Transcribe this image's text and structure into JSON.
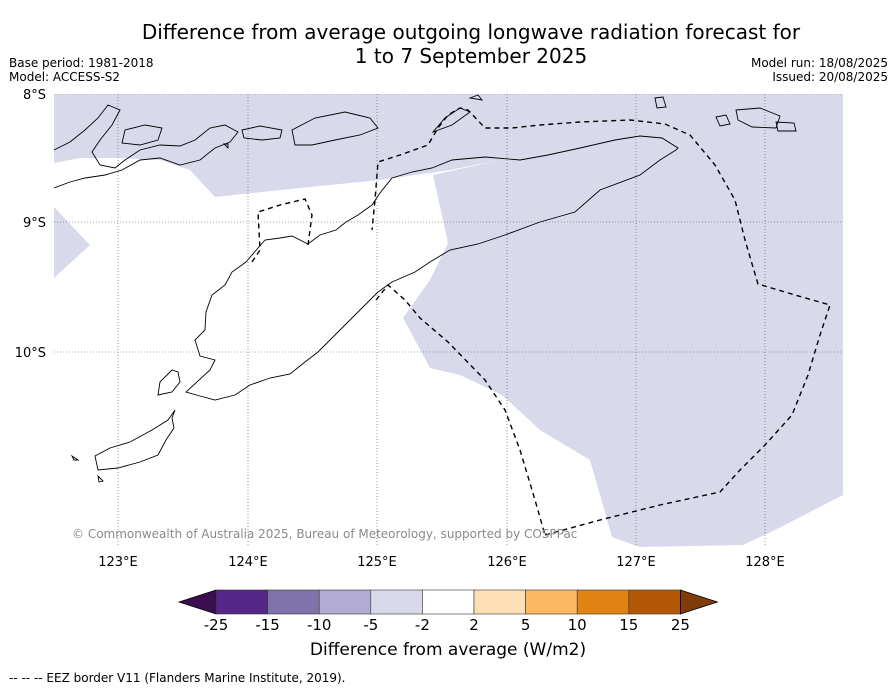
{
  "title_line1": "Difference from average outgoing longwave radiation forecast for",
  "title_line2": "1 to 7 September 2025",
  "base_period": "Base period: 1981-2018",
  "model": "Model: ACCESS-S2",
  "model_run": "Model run: 18/08/2025",
  "issued": "Issued: 20/08/2025",
  "lat_labels": [
    "8°S",
    "9°S",
    "10°S"
  ],
  "lon_labels": [
    "123°E",
    "124°E",
    "125°E",
    "126°E",
    "127°E",
    "128°E"
  ],
  "copyright": "© Commonwealth of Australia 2025, Bureau of Meteorology, supported by COSPPac",
  "colorbar": {
    "label": "Difference from average (W/m2)",
    "ticks": [
      "-25",
      "-15",
      "-10",
      "-5",
      "-2",
      "2",
      "5",
      "10",
      "15",
      "25"
    ],
    "colors": [
      "#3b0f4f",
      "#542788",
      "#8073ac",
      "#b2abd2",
      "#d8daeb",
      "#ffffff",
      "#fee0b6",
      "#fdb863",
      "#e08214",
      "#b35806",
      "#7f3b08"
    ]
  },
  "anomaly_fill_color": "#d8daeb",
  "footnote": "-- -- -- EEZ border V11 (Flanders Marine Institute, 2019)."
}
